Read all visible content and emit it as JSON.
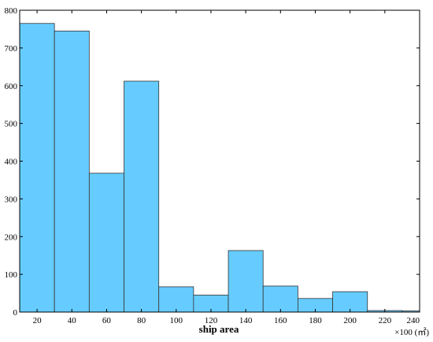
{
  "chart_data": {
    "type": "bar",
    "title": "",
    "xlabel": "ship area",
    "x_unit_label": "×100 (㎡)",
    "ylabel": "",
    "xlim": [
      10,
      240
    ],
    "ylim": [
      0,
      800
    ],
    "xticks": [
      20,
      40,
      60,
      80,
      100,
      120,
      140,
      160,
      180,
      200,
      220,
      240
    ],
    "yticks": [
      0,
      100,
      200,
      300,
      400,
      500,
      600,
      700,
      800
    ],
    "bins": [
      {
        "x0": 10,
        "x1": 30,
        "value": 765
      },
      {
        "x0": 30,
        "x1": 50,
        "value": 745
      },
      {
        "x0": 50,
        "x1": 70,
        "value": 368
      },
      {
        "x0": 70,
        "x1": 90,
        "value": 612
      },
      {
        "x0": 90,
        "x1": 110,
        "value": 67
      },
      {
        "x0": 110,
        "x1": 130,
        "value": 45
      },
      {
        "x0": 130,
        "x1": 150,
        "value": 163
      },
      {
        "x0": 150,
        "x1": 170,
        "value": 69
      },
      {
        "x0": 170,
        "x1": 190,
        "value": 36
      },
      {
        "x0": 190,
        "x1": 210,
        "value": 54
      },
      {
        "x0": 210,
        "x1": 230,
        "value": 4
      },
      {
        "x0": 230,
        "x1": 250,
        "value": 3
      }
    ],
    "grid": false,
    "legend": "none",
    "bar_color": "#66ccff",
    "bar_edge_color": "#333333"
  }
}
